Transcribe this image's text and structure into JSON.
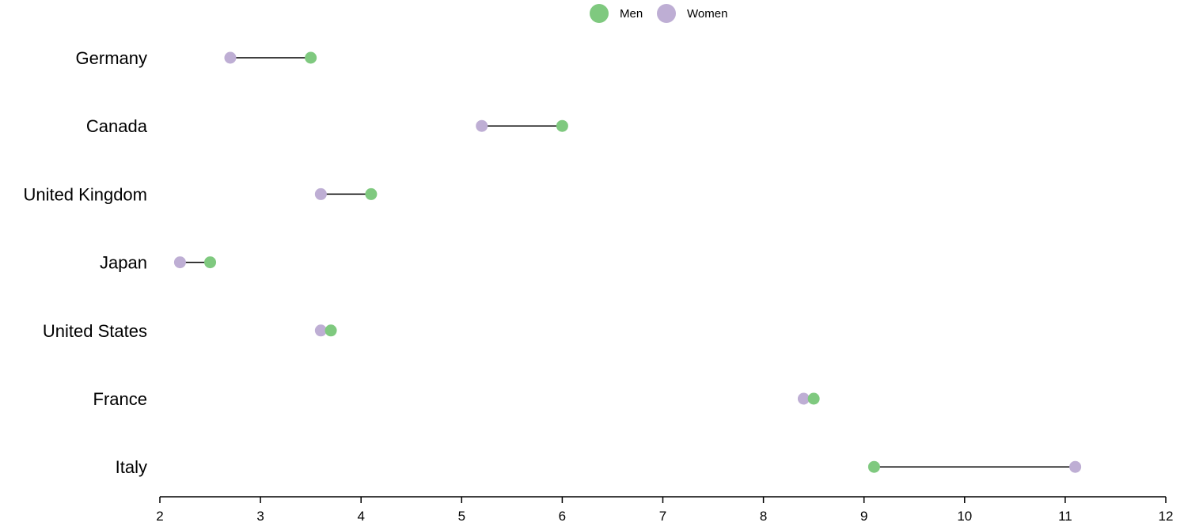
{
  "chart_data": {
    "type": "dumbbell",
    "categories": [
      "Germany",
      "Canada",
      "United Kingdom",
      "Japan",
      "United States",
      "France",
      "Italy"
    ],
    "series": [
      {
        "name": "Men",
        "color": "#7fc97f",
        "values": [
          3.5,
          6.0,
          4.1,
          2.5,
          3.7,
          8.5,
          9.1
        ]
      },
      {
        "name": "Women",
        "color": "#beaed4",
        "values": [
          2.7,
          5.2,
          3.6,
          2.2,
          3.6,
          8.4,
          11.1
        ]
      }
    ],
    "xlim": [
      2,
      12
    ],
    "xticks": [
      2,
      3,
      4,
      5,
      6,
      7,
      8,
      9,
      10,
      11,
      12
    ],
    "legend_position": "top-center",
    "grid": false,
    "connector_color": "#000000"
  }
}
